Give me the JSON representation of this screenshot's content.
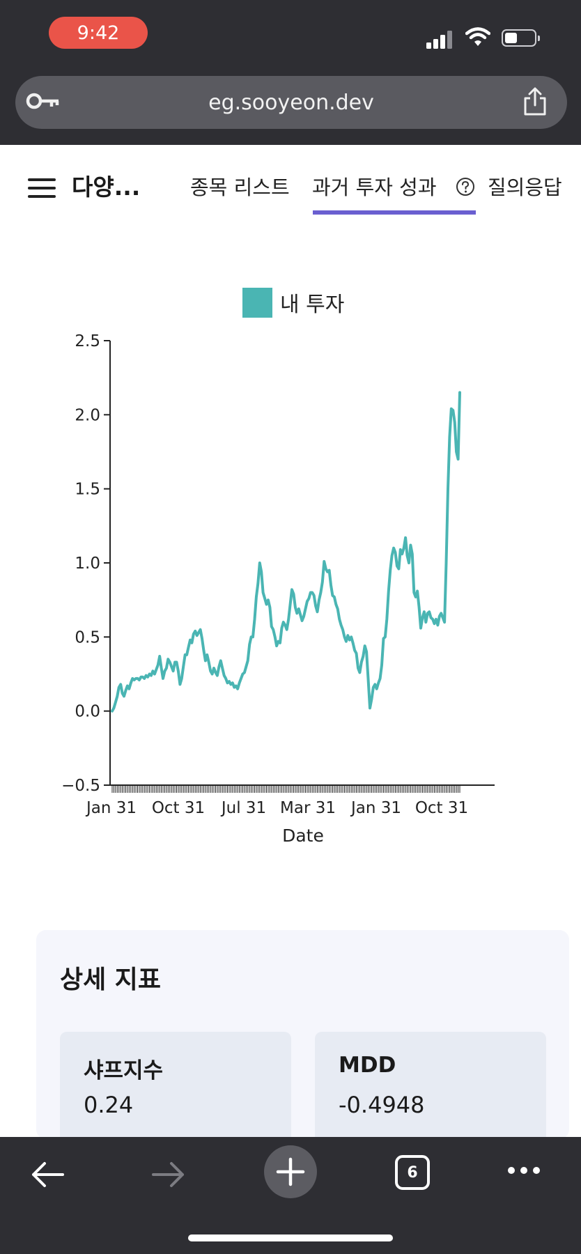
{
  "status_bar": {
    "time": "9:42"
  },
  "browser": {
    "url": "eg.sooyeon.dev",
    "tab_count": "6"
  },
  "header": {
    "title": "다양...",
    "tabs": [
      {
        "label": "종목 리스트"
      },
      {
        "label": "과거 투자 성과",
        "active": true
      },
      {
        "label": "질의응답"
      }
    ]
  },
  "chart_data": {
    "type": "line",
    "xlabel": "Date",
    "ylabel": "",
    "ylim": [
      -0.5,
      2.5
    ],
    "yticks": [
      "−0.5",
      "0.0",
      "0.5",
      "1.0",
      "1.5",
      "2.0",
      "2.5"
    ],
    "xtick_labels": [
      "Jan 31",
      "Oct 31",
      "Jul 31",
      "Mar 31",
      "Jan 31",
      "Oct 31"
    ],
    "legend_position": "top-center",
    "series": [
      {
        "name": "내 투자",
        "color": "#4ab5b3",
        "values": [
          0.0,
          0.02,
          0.06,
          0.1,
          0.16,
          0.18,
          0.12,
          0.1,
          0.14,
          0.17,
          0.15,
          0.19,
          0.22,
          0.21,
          0.22,
          0.22,
          0.21,
          0.23,
          0.23,
          0.22,
          0.24,
          0.23,
          0.25,
          0.24,
          0.27,
          0.25,
          0.28,
          0.31,
          0.37,
          0.29,
          0.22,
          0.27,
          0.29,
          0.35,
          0.33,
          0.3,
          0.27,
          0.33,
          0.33,
          0.27,
          0.18,
          0.22,
          0.3,
          0.38,
          0.38,
          0.43,
          0.48,
          0.46,
          0.52,
          0.54,
          0.51,
          0.53,
          0.55,
          0.49,
          0.41,
          0.34,
          0.38,
          0.33,
          0.27,
          0.25,
          0.29,
          0.26,
          0.24,
          0.3,
          0.34,
          0.29,
          0.24,
          0.22,
          0.19,
          0.2,
          0.18,
          0.19,
          0.16,
          0.17,
          0.15,
          0.19,
          0.22,
          0.25,
          0.26,
          0.3,
          0.34,
          0.45,
          0.5,
          0.5,
          0.62,
          0.77,
          0.86,
          1.0,
          0.94,
          0.8,
          0.76,
          0.72,
          0.75,
          0.7,
          0.57,
          0.55,
          0.5,
          0.44,
          0.47,
          0.46,
          0.56,
          0.6,
          0.58,
          0.55,
          0.62,
          0.72,
          0.82,
          0.79,
          0.7,
          0.66,
          0.69,
          0.65,
          0.61,
          0.64,
          0.69,
          0.74,
          0.76,
          0.8,
          0.8,
          0.78,
          0.71,
          0.67,
          0.75,
          0.8,
          0.87,
          1.01,
          0.96,
          0.94,
          0.95,
          0.85,
          0.78,
          0.77,
          0.72,
          0.69,
          0.62,
          0.58,
          0.55,
          0.5,
          0.47,
          0.51,
          0.48,
          0.5,
          0.46,
          0.41,
          0.39,
          0.29,
          0.26,
          0.33,
          0.37,
          0.44,
          0.4,
          0.21,
          0.02,
          0.08,
          0.16,
          0.18,
          0.15,
          0.19,
          0.22,
          0.31,
          0.49,
          0.5,
          0.62,
          0.81,
          0.95,
          1.05,
          1.1,
          1.07,
          0.98,
          0.96,
          1.09,
          1.06,
          1.1,
          1.17,
          1.05,
          1.0,
          1.12,
          1.06,
          0.8,
          0.77,
          0.81,
          0.7,
          0.56,
          0.63,
          0.67,
          0.6,
          0.66,
          0.67,
          0.63,
          0.62,
          0.59,
          0.62,
          0.58,
          0.64,
          0.66,
          0.63,
          0.6,
          1.0,
          1.5,
          1.85,
          2.04,
          2.03,
          1.95,
          1.75,
          1.7,
          2.15
        ]
      }
    ]
  },
  "metrics": {
    "title": "상세 지표",
    "cards": [
      {
        "label": "샤프지수",
        "value": "0.24"
      },
      {
        "label": "MDD",
        "value": "-0.4948"
      }
    ]
  }
}
